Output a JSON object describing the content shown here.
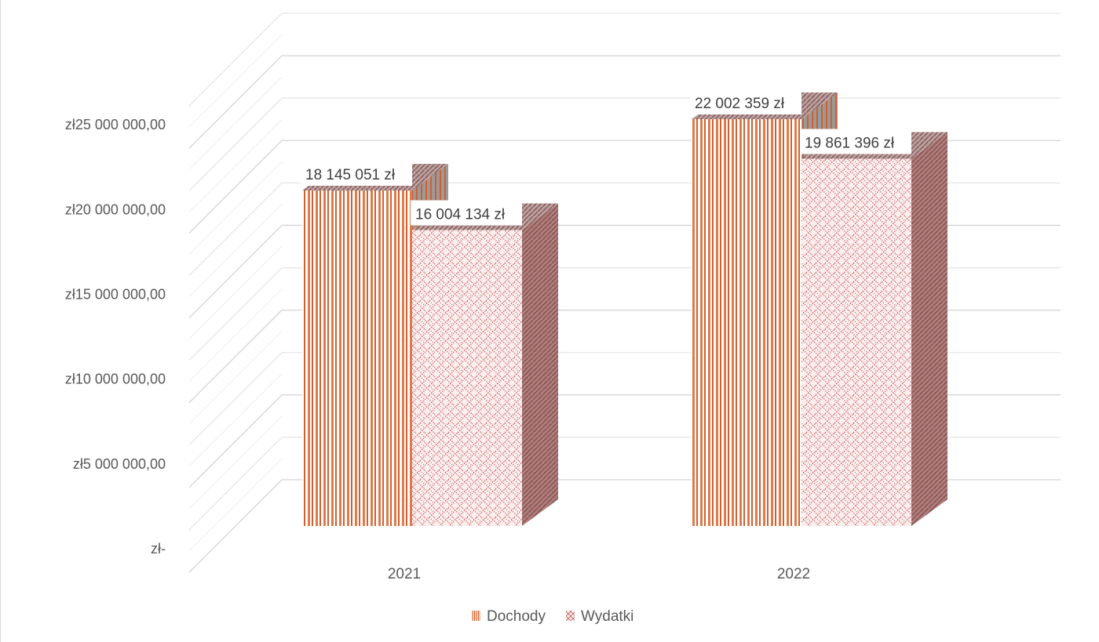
{
  "chart_data": {
    "type": "bar",
    "style": "3d-clustered-column",
    "categories": [
      "2021",
      "2022"
    ],
    "series": [
      {
        "name": "Dochody",
        "values": [
          18145051,
          22002359
        ],
        "labels": [
          "18 145 051 zł",
          "22 002 359 zł"
        ],
        "color": "#e07a4a",
        "pattern": "vertical-stripes"
      },
      {
        "name": "Wydatki",
        "values": [
          16004134,
          19861396
        ],
        "labels": [
          "16 004 134 zł",
          "19 861 396 zł"
        ],
        "color": "#c9706e",
        "pattern": "weave"
      }
    ],
    "yticks": [
      {
        "value": 0,
        "label": "zł-"
      },
      {
        "value": 5000000,
        "label": "zł5 000 000,00"
      },
      {
        "value": 10000000,
        "label": "zł10 000 000,00"
      },
      {
        "value": 15000000,
        "label": "zł15 000 000,00"
      },
      {
        "value": 20000000,
        "label": "zł20 000 000,00"
      },
      {
        "value": 25000000,
        "label": "zł25 000 000,00"
      }
    ],
    "ylim": [
      0,
      27500000
    ],
    "grid": true,
    "legend": "bottom-center"
  }
}
